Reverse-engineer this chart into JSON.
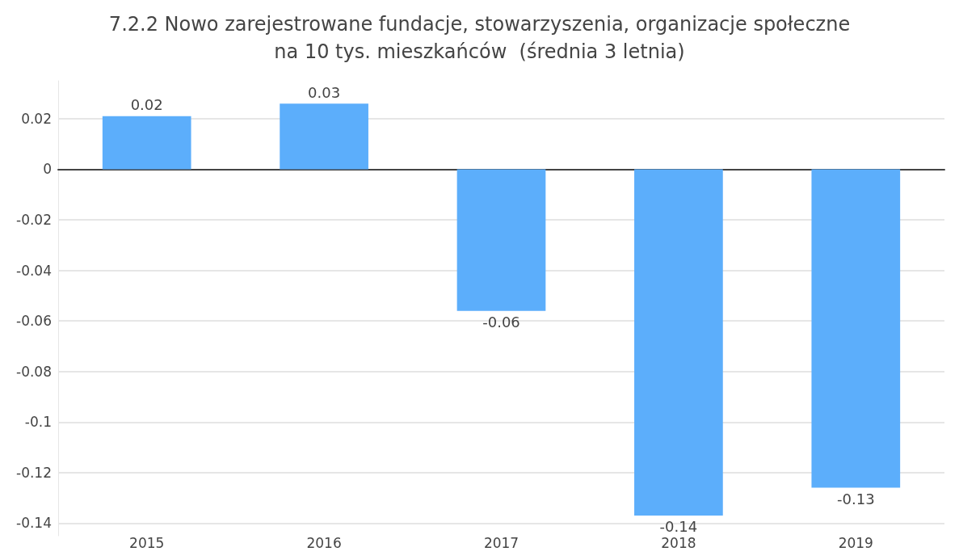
{
  "chart_data": {
    "type": "bar",
    "title": "7.2.2 Nowo zarejestrowane fundacje, stowarzyszenia, organizacje społeczne\nna 10 tys. mieszkańców  (średnia 3 letnia)",
    "categories": [
      "2015",
      "2016",
      "2017",
      "2018",
      "2019"
    ],
    "values": [
      0.021,
      0.026,
      -0.056,
      -0.137,
      -0.126
    ],
    "value_labels": [
      "0.02",
      "0.03",
      "-0.06",
      "-0.14",
      "-0.13"
    ],
    "color": "#5caefb",
    "ylim": [
      -0.145,
      0.035
    ],
    "yticks": [
      0.02,
      0,
      -0.02,
      -0.04,
      -0.06,
      -0.08,
      -0.1,
      -0.12,
      -0.14
    ],
    "grid": "y"
  }
}
